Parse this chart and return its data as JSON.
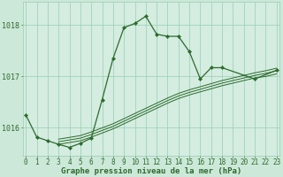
{
  "title": "Graphe pression niveau de la mer (hPa)",
  "hours": [
    0,
    1,
    2,
    3,
    4,
    5,
    6,
    7,
    8,
    9,
    10,
    11,
    12,
    13,
    14,
    15,
    16,
    17,
    18,
    19,
    20,
    21,
    22,
    23
  ],
  "main_line": {
    "x": [
      0,
      1,
      2,
      3,
      4,
      5,
      6,
      7,
      8,
      9,
      10,
      11,
      12,
      13,
      14,
      15,
      16,
      17,
      18,
      21,
      23
    ],
    "y": [
      1016.25,
      1015.82,
      1015.75,
      1015.68,
      1015.62,
      1015.7,
      1015.8,
      1016.55,
      1017.35,
      1017.95,
      1018.03,
      1018.17,
      1017.82,
      1017.78,
      1017.78,
      1017.48,
      1016.95,
      1017.17,
      1017.17,
      1016.95,
      1017.12
    ]
  },
  "band_lines": [
    {
      "x": [
        3,
        5,
        6,
        7,
        8,
        9,
        10,
        11,
        12,
        13,
        14,
        15,
        16,
        17,
        18,
        19,
        20,
        21,
        22,
        23
      ],
      "y": [
        1015.68,
        1015.75,
        1015.82,
        1015.9,
        1015.98,
        1016.08,
        1016.18,
        1016.28,
        1016.38,
        1016.48,
        1016.57,
        1016.64,
        1016.7,
        1016.76,
        1016.82,
        1016.87,
        1016.92,
        1016.97,
        1017.0,
        1017.05
      ]
    },
    {
      "x": [
        3,
        5,
        6,
        7,
        8,
        9,
        10,
        11,
        12,
        13,
        14,
        15,
        16,
        17,
        18,
        19,
        20,
        21,
        22,
        23
      ],
      "y": [
        1015.73,
        1015.8,
        1015.87,
        1015.95,
        1016.03,
        1016.13,
        1016.23,
        1016.33,
        1016.43,
        1016.53,
        1016.62,
        1016.69,
        1016.75,
        1016.81,
        1016.87,
        1016.92,
        1016.97,
        1017.02,
        1017.06,
        1017.11
      ]
    },
    {
      "x": [
        3,
        5,
        6,
        7,
        8,
        9,
        10,
        11,
        12,
        13,
        14,
        15,
        16,
        17,
        18,
        19,
        20,
        21,
        22,
        23
      ],
      "y": [
        1015.78,
        1015.85,
        1015.92,
        1016.0,
        1016.08,
        1016.18,
        1016.28,
        1016.38,
        1016.48,
        1016.58,
        1016.67,
        1016.74,
        1016.8,
        1016.86,
        1016.92,
        1016.97,
        1017.02,
        1017.07,
        1017.11,
        1017.16
      ]
    }
  ],
  "ylim": [
    1015.45,
    1018.45
  ],
  "yticks": [
    1016.0,
    1017.0,
    1018.0
  ],
  "bg_color": "#cce8d8",
  "plot_bg_color": "#d4ede0",
  "line_color": "#2d6a2d",
  "grid_color": "#99ccb3",
  "text_color": "#2d6a2d",
  "title_fontsize": 6.5,
  "tick_fontsize": 5.5
}
